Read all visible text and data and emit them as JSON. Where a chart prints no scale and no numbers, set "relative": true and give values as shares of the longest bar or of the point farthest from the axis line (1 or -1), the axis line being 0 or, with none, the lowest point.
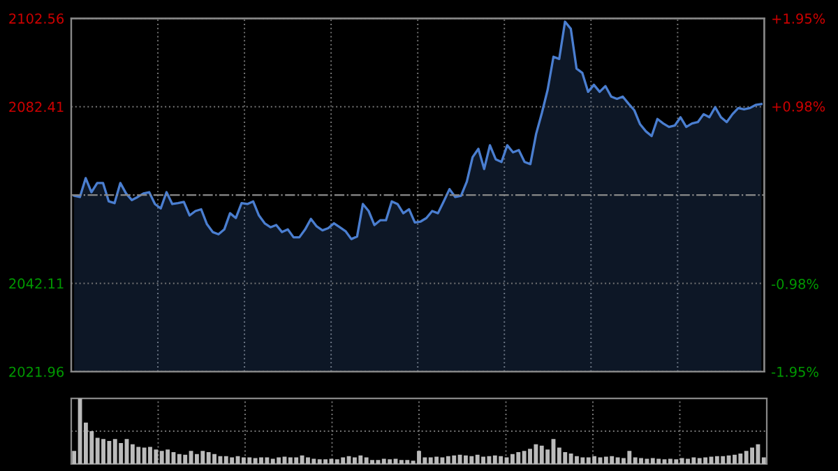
{
  "chart_data": [
    {
      "type": "area",
      "categories": [
        null,
        null,
        null,
        null,
        null,
        null,
        null,
        null,
        null,
        null,
        null,
        null,
        null,
        null,
        null,
        null,
        null,
        null,
        null,
        null,
        null,
        null,
        null,
        null,
        null,
        null,
        null,
        null,
        null,
        null,
        null,
        null,
        null,
        null,
        null,
        null,
        null,
        null,
        null,
        null,
        null,
        null,
        null,
        null,
        null,
        null,
        null,
        null,
        null,
        null,
        null,
        null,
        null,
        null,
        null,
        null,
        null,
        null,
        null,
        null,
        null,
        null,
        null,
        null,
        null,
        null,
        null,
        null,
        null,
        null,
        null,
        null,
        null,
        null,
        null,
        null,
        null,
        null,
        null,
        null,
        null,
        null,
        null,
        null,
        null,
        null,
        null,
        null,
        null,
        null,
        null,
        null,
        null,
        null,
        null,
        null,
        null,
        null,
        null,
        null,
        null,
        null,
        null,
        null,
        null,
        null,
        null,
        null,
        null,
        null,
        null,
        null,
        null,
        null,
        null,
        null,
        null,
        null,
        null,
        null
      ],
      "series": [
        {
          "color": "#4a7ed0",
          "values": [
            2062.1,
            2061.8,
            2066.1,
            2062.9,
            2065.0,
            2065.0,
            2060.8,
            2060.4,
            2065.0,
            2062.6,
            2061.1,
            2061.8,
            2062.6,
            2062.9,
            2060.2,
            2059.2,
            2062.9,
            2060.2,
            2060.4,
            2060.7,
            2057.6,
            2058.6,
            2059.0,
            2055.6,
            2053.8,
            2053.3,
            2054.4,
            2058.1,
            2057.0,
            2060.4,
            2060.2,
            2060.8,
            2057.6,
            2055.8,
            2054.9,
            2055.4,
            2053.8,
            2054.4,
            2052.6,
            2052.6,
            2054.4,
            2056.8,
            2055.1,
            2054.2,
            2054.7,
            2055.8,
            2054.9,
            2054.0,
            2052.2,
            2052.8,
            2060.2,
            2058.6,
            2055.4,
            2056.5,
            2056.5,
            2060.8,
            2060.2,
            2058.1,
            2059.0,
            2056.0,
            2056.2,
            2057.0,
            2058.6,
            2058.1,
            2060.8,
            2063.6,
            2061.8,
            2062.1,
            2065.3,
            2070.9,
            2072.8,
            2068.2,
            2073.6,
            2070.4,
            2069.8,
            2073.6,
            2072.0,
            2072.5,
            2069.8,
            2069.3,
            2076.2,
            2081.0,
            2086.3,
            2093.8,
            2093.3,
            2101.8,
            2100.2,
            2091.1,
            2090.1,
            2085.8,
            2087.4,
            2085.8,
            2087.1,
            2084.7,
            2084.2,
            2084.7,
            2083.1,
            2081.6,
            2078.4,
            2076.8,
            2075.7,
            2079.6,
            2078.6,
            2077.8,
            2078.1,
            2080.0,
            2077.8,
            2078.6,
            2078.9,
            2080.7,
            2080.0,
            2082.3,
            2080.0,
            2078.9,
            2080.7,
            2082.1,
            2081.8,
            2082.1,
            2082.8,
            2083.0
          ]
        }
      ],
      "ylim": [
        2021.96,
        2102.56
      ],
      "yticks": [
        2021.96,
        2042.11,
        2082.41,
        2102.56
      ],
      "y2lim": [
        -1.95,
        1.95
      ],
      "y2ticks": [
        {
          "value": -1.95,
          "label": "-1.95%"
        },
        {
          "value": -0.98,
          "label": "-0.98%"
        },
        {
          "value": 0.98,
          "label": "+0.98%"
        },
        {
          "value": 1.95,
          "label": "+1.95%"
        }
      ],
      "ref_lines": [
        {
          "axis": "y",
          "value": 2062.26,
          "line_style": "dashdot",
          "color": "#888888"
        }
      ],
      "grid": true
    },
    {
      "type": "bar",
      "relative": true,
      "grid": true,
      "categories": [
        null,
        null,
        null,
        null,
        null,
        null,
        null,
        null,
        null,
        null,
        null,
        null,
        null,
        null,
        null,
        null,
        null,
        null,
        null,
        null,
        null,
        null,
        null,
        null,
        null,
        null,
        null,
        null,
        null,
        null,
        null,
        null,
        null,
        null,
        null,
        null,
        null,
        null,
        null,
        null,
        null,
        null,
        null,
        null,
        null,
        null,
        null,
        null,
        null,
        null,
        null,
        null,
        null,
        null,
        null,
        null,
        null,
        null,
        null,
        null,
        null,
        null,
        null,
        null,
        null,
        null,
        null,
        null,
        null,
        null,
        null,
        null,
        null,
        null,
        null,
        null,
        null,
        null,
        null,
        null,
        null,
        null,
        null,
        null,
        null,
        null,
        null,
        null,
        null,
        null,
        null,
        null,
        null,
        null,
        null,
        null,
        null,
        null,
        null,
        null,
        null,
        null,
        null,
        null,
        null,
        null,
        null,
        null,
        null,
        null,
        null,
        null,
        null,
        null,
        null,
        null,
        null,
        null,
        null
      ],
      "series": [
        {
          "color": "#bbbbbb",
          "values": [
            0.2,
            1.0,
            0.63,
            0.5,
            0.4,
            0.38,
            0.35,
            0.38,
            0.32,
            0.38,
            0.3,
            0.26,
            0.25,
            0.26,
            0.22,
            0.2,
            0.22,
            0.18,
            0.15,
            0.14,
            0.2,
            0.15,
            0.2,
            0.18,
            0.15,
            0.12,
            0.12,
            0.1,
            0.12,
            0.1,
            0.1,
            0.09,
            0.1,
            0.1,
            0.08,
            0.1,
            0.11,
            0.1,
            0.1,
            0.13,
            0.1,
            0.08,
            0.07,
            0.07,
            0.08,
            0.07,
            0.1,
            0.12,
            0.1,
            0.13,
            0.1,
            0.06,
            0.06,
            0.08,
            0.07,
            0.08,
            0.06,
            0.06,
            0.05,
            0.2,
            0.1,
            0.1,
            0.11,
            0.1,
            0.12,
            0.13,
            0.14,
            0.13,
            0.12,
            0.14,
            0.11,
            0.12,
            0.13,
            0.12,
            0.1,
            0.15,
            0.18,
            0.2,
            0.23,
            0.3,
            0.28,
            0.22,
            0.38,
            0.25,
            0.18,
            0.16,
            0.12,
            0.1,
            0.1,
            0.12,
            0.1,
            0.11,
            0.12,
            0.1,
            0.09,
            0.2,
            0.1,
            0.09,
            0.08,
            0.09,
            0.08,
            0.07,
            0.08,
            0.07,
            0.09,
            0.08,
            0.1,
            0.09,
            0.1,
            0.11,
            0.12,
            0.12,
            0.13,
            0.14,
            0.16,
            0.2,
            0.25,
            0.3,
            0.1
          ]
        }
      ]
    }
  ]
}
